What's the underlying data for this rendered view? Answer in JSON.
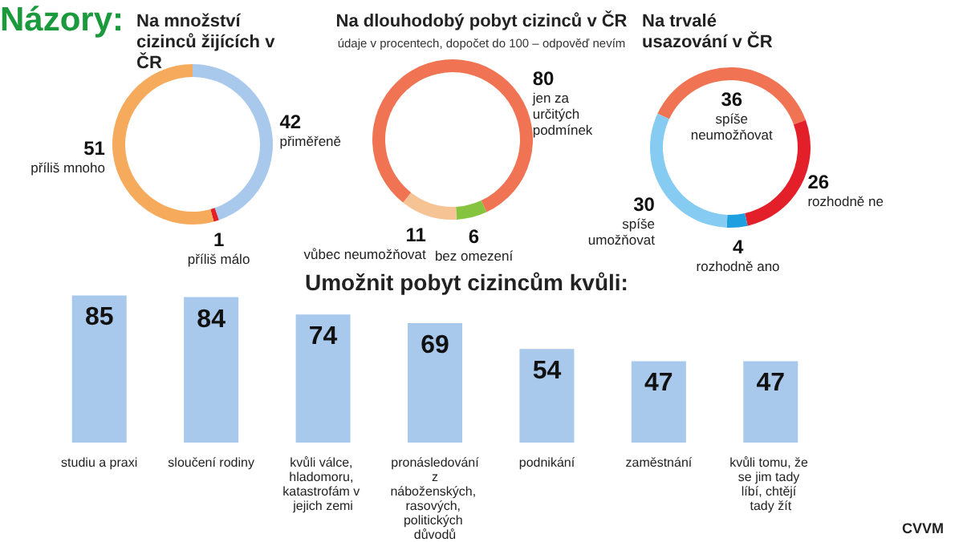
{
  "chart_data": [
    {
      "type": "donut",
      "title": "Na množství cizinců žijících v ČR",
      "annotations": [
        "Názory:"
      ],
      "categories": [
        "přiměřeně",
        "příliš málo",
        "příliš mnoho"
      ],
      "values": [
        42,
        1,
        51
      ],
      "colors": [
        "#a9c9ec",
        "#e3202a",
        "#f6aa5c"
      ],
      "data_labels": true
    },
    {
      "type": "donut",
      "title": "Na dlouhodobý pobyt cizinců v ČR",
      "subtitle": "údaje v procentech, dopočet do 100 – odpověď nevím",
      "categories": [
        "jen za určitých podmínek",
        "bez omezení",
        "vůbec neumožňovat"
      ],
      "values": [
        80,
        6,
        11
      ],
      "colors": [
        "#f07453",
        "#86c440",
        "#f6c395"
      ],
      "data_labels": true
    },
    {
      "type": "donut",
      "title": "Na trvalé usazování v ČR",
      "categories": [
        "spíše neumožňovat",
        "rozhodně ne",
        "rozhodně ano",
        "spíše umožňovat"
      ],
      "values": [
        36,
        26,
        4,
        30
      ],
      "colors": [
        "#f07453",
        "#e3202a",
        "#1e9fe0",
        "#86cbf2"
      ],
      "data_labels": true
    },
    {
      "type": "bar",
      "title": "Umožnit pobyt cizincům kvůli:",
      "categories": [
        "studiu a praxi",
        "sloučení rodiny",
        "kvůli válce, hladomoru, katastrofám v jejich zemi",
        "pronásledování z náboženských, rasových, politických důvodů",
        "podnikání",
        "zaměstnání",
        "kvůli tomu, že se jim tady líbí, chtějí tady žít"
      ],
      "values": [
        85,
        84,
        74,
        69,
        54,
        47,
        47
      ],
      "color": "#a9c9ec",
      "data_labels": true,
      "annotations": [
        "CVVM"
      ]
    }
  ]
}
